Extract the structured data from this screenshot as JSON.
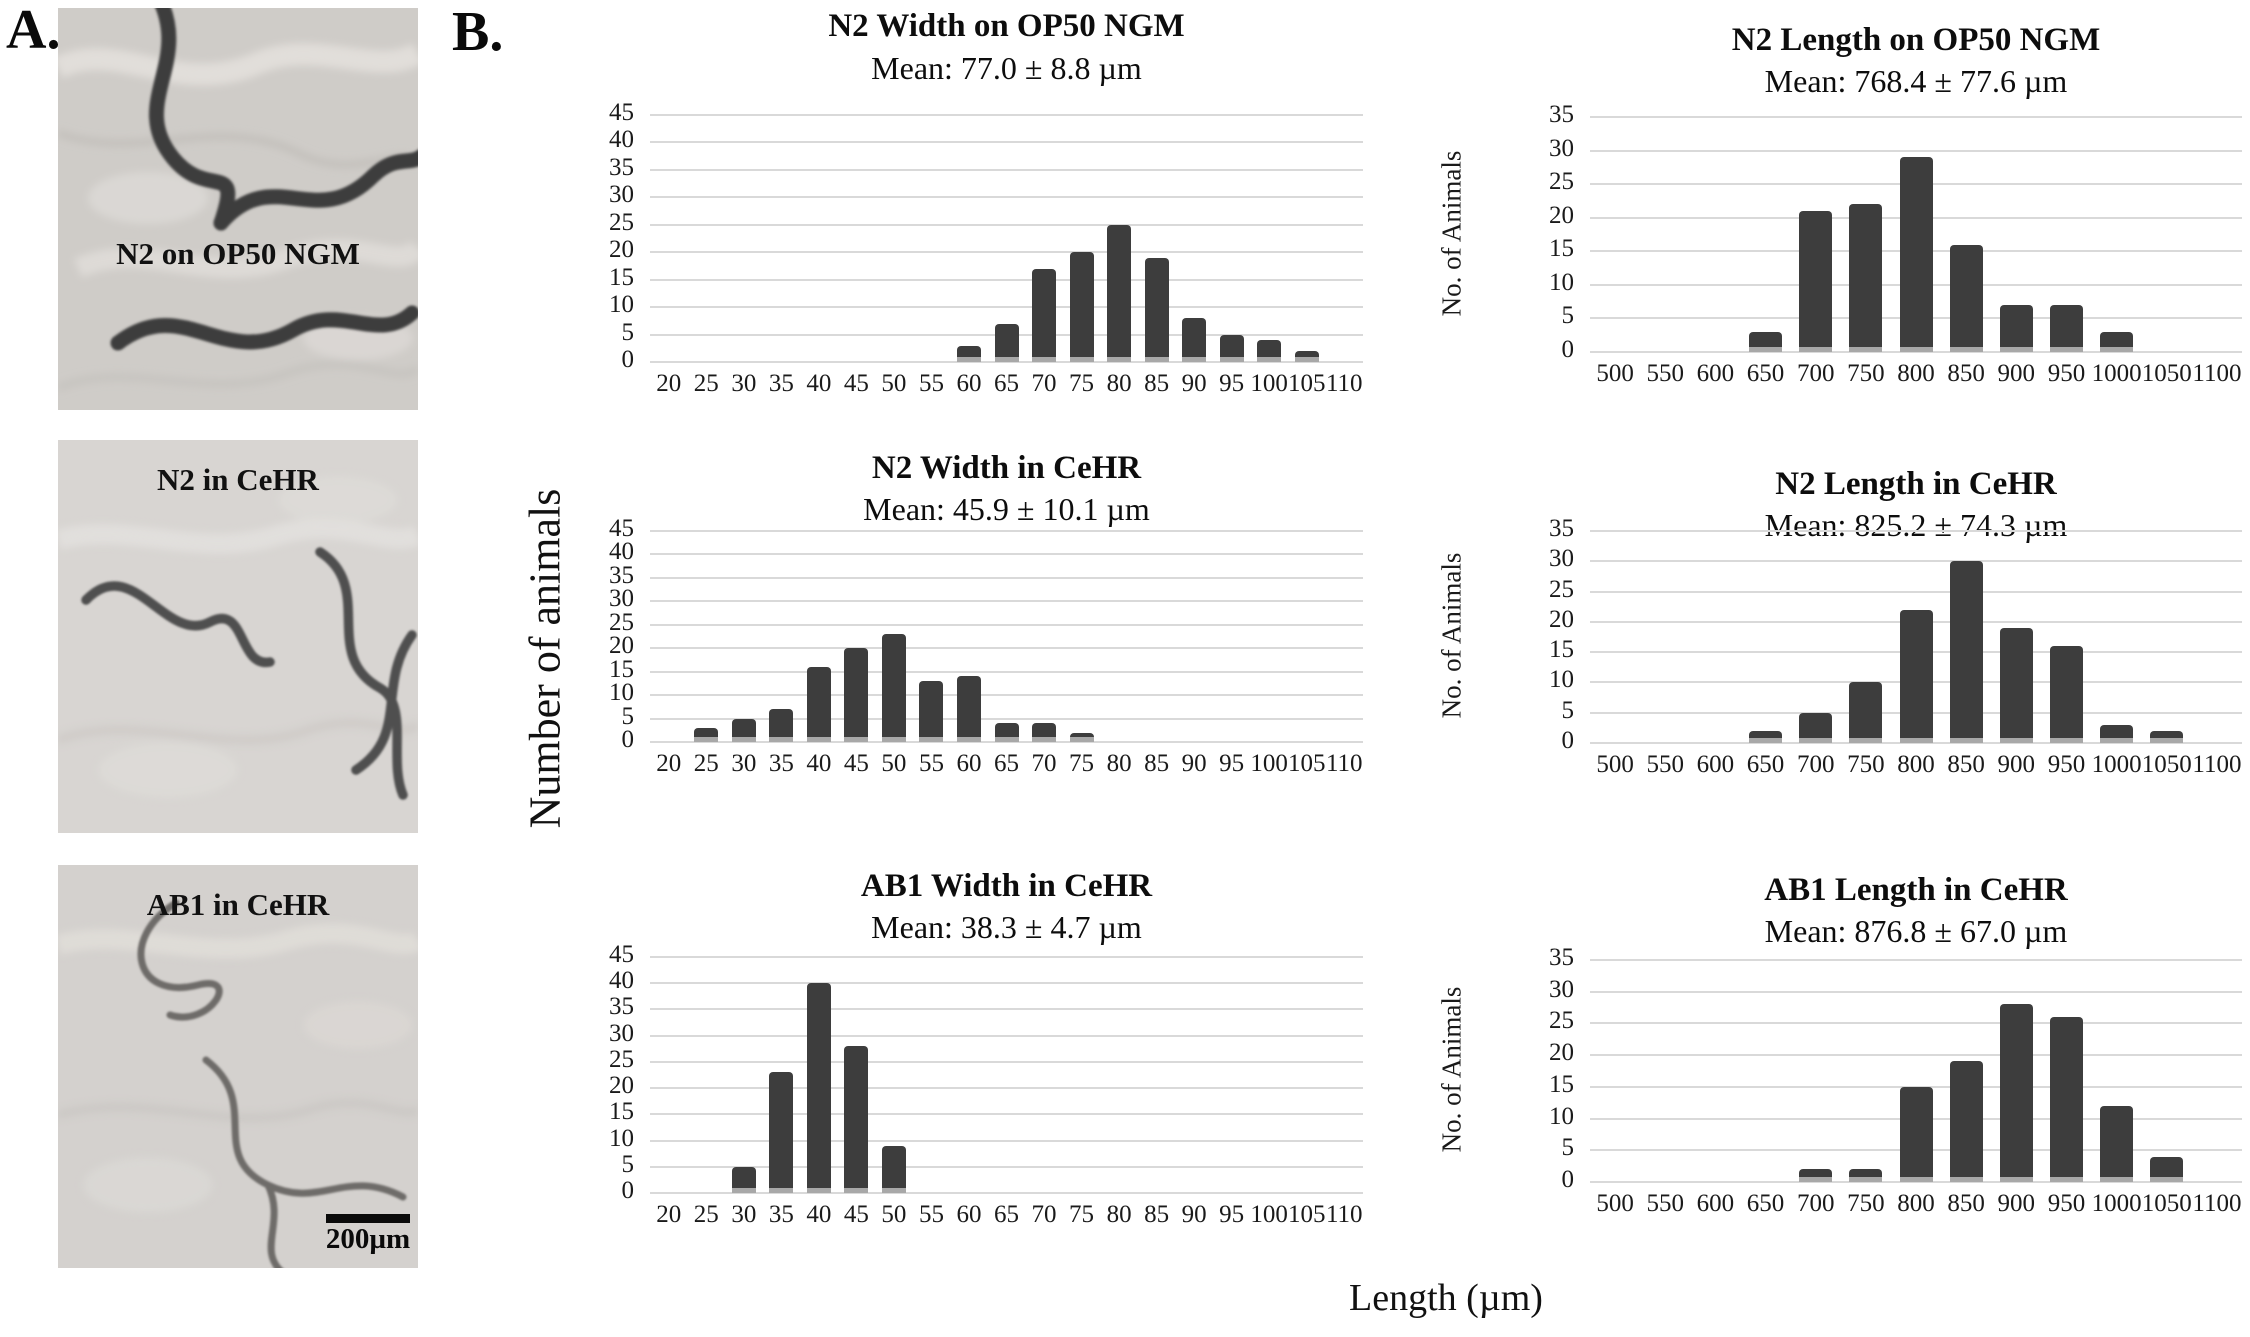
{
  "figure": {
    "panel_a_label": "A.",
    "panel_b_label": "B.",
    "shared_y_axis_label": "Number of animals",
    "shared_x_axis_label": "Length (µm)",
    "colors": {
      "bar": "#3d3d3d",
      "bar_base": "#a8a8a8",
      "gridline": "#d9d9d9",
      "background": "#ffffff"
    },
    "micrographs": [
      {
        "label": "N2 on OP50 NGM"
      },
      {
        "label": "N2 in CeHR"
      },
      {
        "label": "AB1 in CeHR",
        "scale_bar_label": "200µm"
      }
    ]
  },
  "chart_data": [
    {
      "type": "bar",
      "title": "N2 Width on OP50 NGM",
      "subtitle": "Mean: 77.0 ± 8.8 µm",
      "ylabel": "",
      "categories": [
        20,
        25,
        30,
        35,
        40,
        45,
        50,
        55,
        60,
        65,
        70,
        75,
        80,
        85,
        90,
        95,
        100,
        105,
        110
      ],
      "values": [
        0,
        0,
        0,
        0,
        0,
        0,
        0,
        0,
        3,
        7,
        17,
        20,
        25,
        19,
        8,
        5,
        4,
        2,
        0
      ],
      "ylim": [
        0,
        45
      ],
      "ytick_step": 5,
      "grid": true
    },
    {
      "type": "bar",
      "title": "N2 Length on OP50 NGM",
      "subtitle": "Mean: 768.4 ± 77.6 µm",
      "ylabel": "No. of Animals",
      "categories": [
        500,
        550,
        600,
        650,
        700,
        750,
        800,
        850,
        900,
        950,
        1000,
        1050,
        1100
      ],
      "values": [
        0,
        0,
        0,
        3,
        21,
        22,
        29,
        16,
        7,
        7,
        3,
        0,
        0
      ],
      "ylim": [
        0,
        35
      ],
      "ytick_step": 5,
      "grid": true
    },
    {
      "type": "bar",
      "title": "N2 Width in CeHR",
      "subtitle": "Mean: 45.9 ± 10.1 µm",
      "ylabel": "",
      "categories": [
        20,
        25,
        30,
        35,
        40,
        45,
        50,
        55,
        60,
        65,
        70,
        75,
        80,
        85,
        90,
        95,
        100,
        105,
        110
      ],
      "values": [
        0,
        3,
        5,
        7,
        16,
        20,
        23,
        13,
        14,
        4,
        4,
        2,
        0,
        0,
        0,
        0,
        0,
        0,
        0
      ],
      "ylim": [
        0,
        45
      ],
      "ytick_step": 5,
      "grid": true
    },
    {
      "type": "bar",
      "title": "N2 Length in CeHR",
      "subtitle": "Mean: 825.2 ± 74.3 µm",
      "ylabel": "No. of Animals",
      "categories": [
        500,
        550,
        600,
        650,
        700,
        750,
        800,
        850,
        900,
        950,
        1000,
        1050,
        1100
      ],
      "values": [
        0,
        0,
        0,
        2,
        5,
        10,
        22,
        30,
        19,
        16,
        3,
        2,
        0
      ],
      "ylim": [
        0,
        35
      ],
      "ytick_step": 5,
      "grid": true
    },
    {
      "type": "bar",
      "title": "AB1 Width in CeHR",
      "subtitle": "Mean: 38.3 ± 4.7 µm",
      "ylabel": "",
      "categories": [
        20,
        25,
        30,
        35,
        40,
        45,
        50,
        55,
        60,
        65,
        70,
        75,
        80,
        85,
        90,
        95,
        100,
        105,
        110
      ],
      "values": [
        0,
        0,
        5,
        23,
        40,
        28,
        9,
        0,
        0,
        0,
        0,
        0,
        0,
        0,
        0,
        0,
        0,
        0,
        0
      ],
      "ylim": [
        0,
        45
      ],
      "ytick_step": 5,
      "grid": true
    },
    {
      "type": "bar",
      "title": "AB1 Length in CeHR",
      "subtitle": "Mean: 876.8 ± 67.0 µm",
      "ylabel": "No. of Animals",
      "categories": [
        500,
        550,
        600,
        650,
        700,
        750,
        800,
        850,
        900,
        950,
        1000,
        1050,
        1100
      ],
      "values": [
        0,
        0,
        0,
        0,
        2,
        2,
        15,
        19,
        28,
        26,
        12,
        4,
        0
      ],
      "ylim": [
        0,
        35
      ],
      "ytick_step": 5,
      "grid": true
    }
  ]
}
